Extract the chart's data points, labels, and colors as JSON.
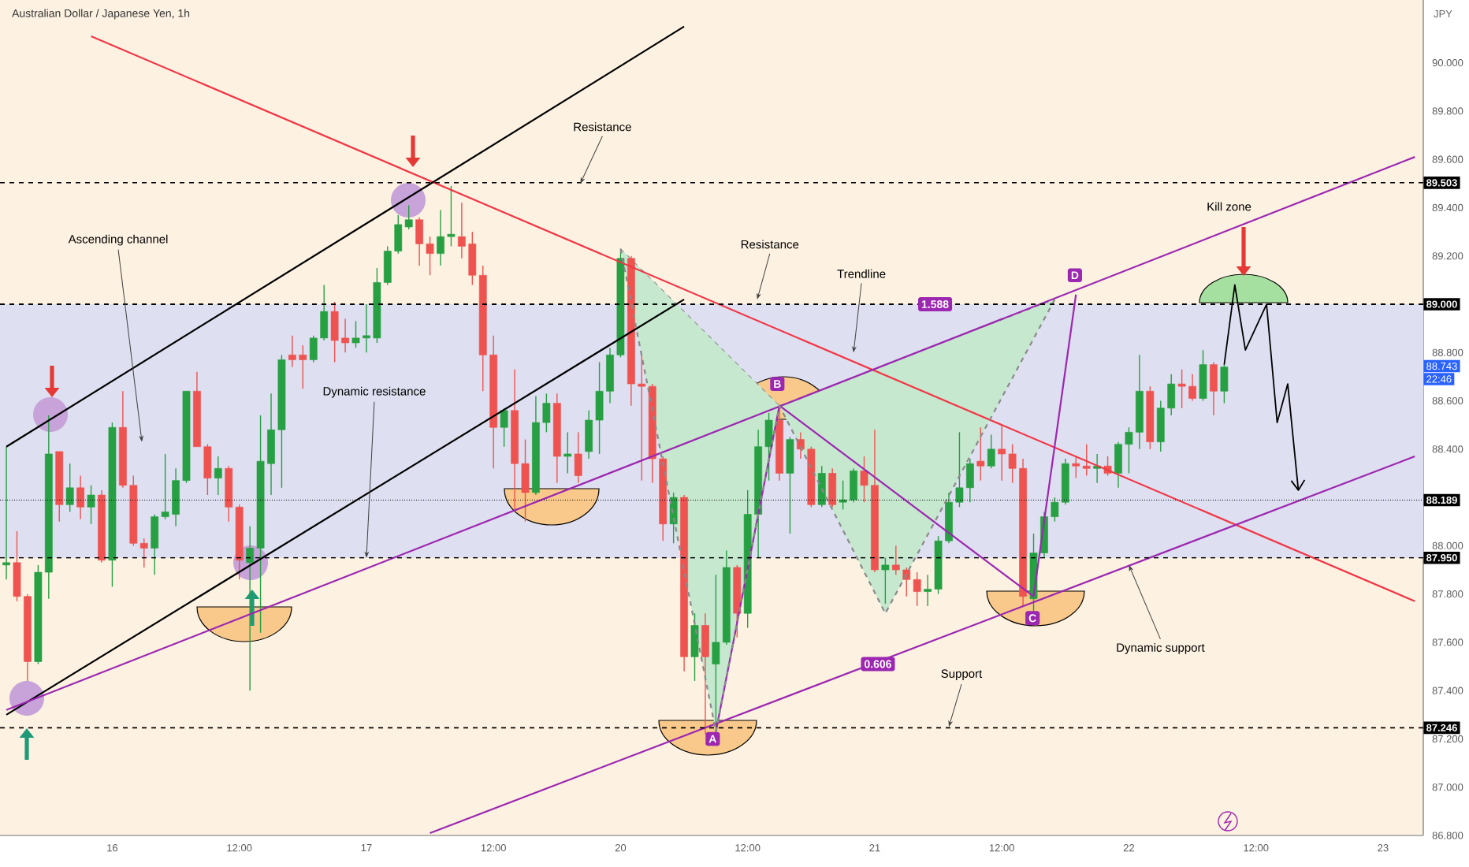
{
  "chart_data": {
    "type": "candlestick",
    "title": "Australian Dollar / Japanese Yen, 1h",
    "ylabel": "JPY",
    "categories": [
      null,
      null,
      null,
      null,
      null,
      null,
      null,
      null,
      null,
      null,
      "16",
      null,
      null,
      null,
      null,
      null,
      null,
      null,
      null,
      null,
      null,
      null,
      "12:00",
      null,
      null,
      null,
      null,
      null,
      null,
      null,
      null,
      null,
      null,
      null,
      "17",
      null,
      null,
      null,
      null,
      null,
      null,
      null,
      null,
      null,
      null,
      null,
      "12:00",
      null,
      null,
      null,
      null,
      null,
      null,
      null,
      null,
      null,
      null,
      null,
      "20",
      null,
      null,
      null,
      null,
      null,
      null,
      null,
      null,
      null,
      null,
      null,
      "12:00",
      null,
      null,
      null,
      null,
      null,
      null,
      null,
      null,
      null,
      null,
      null,
      "21",
      null,
      null,
      null,
      null,
      null,
      null,
      null,
      null,
      null,
      null,
      null,
      "12:00",
      null,
      null,
      null,
      null,
      null,
      null,
      null,
      null,
      null,
      null,
      null,
      "22",
      null,
      null,
      null,
      null,
      null,
      null,
      null,
      null,
      null,
      null,
      null,
      "12:00",
      null,
      null,
      null,
      null,
      null,
      null,
      null,
      null,
      null,
      null,
      null,
      "23",
      null,
      null,
      null
    ],
    "ohlc": [
      [
        87.92,
        88.41,
        87.86,
        87.93
      ],
      [
        87.93,
        88.06,
        87.77,
        87.79
      ],
      [
        87.79,
        87.8,
        87.44,
        87.52
      ],
      [
        87.52,
        87.92,
        87.51,
        87.89
      ],
      [
        87.89,
        88.54,
        87.78,
        88.38
      ],
      [
        88.39,
        88.39,
        88.1,
        88.17
      ],
      [
        88.17,
        88.34,
        88.14,
        88.24
      ],
      [
        88.24,
        88.29,
        88.11,
        88.16
      ],
      [
        88.16,
        88.25,
        88.09,
        88.21
      ],
      [
        88.21,
        88.23,
        87.93,
        87.94
      ],
      [
        87.94,
        88.51,
        87.83,
        88.49
      ],
      [
        88.49,
        88.64,
        88.24,
        88.25
      ],
      [
        88.25,
        88.29,
        88.0,
        88.01
      ],
      [
        88.01,
        88.03,
        87.91,
        87.99
      ],
      [
        87.99,
        88.13,
        87.88,
        88.12
      ],
      [
        88.12,
        88.38,
        88.11,
        88.14
      ],
      [
        88.13,
        88.32,
        88.08,
        88.27
      ],
      [
        88.27,
        88.64,
        88.26,
        88.64
      ],
      [
        88.64,
        88.72,
        88.41,
        88.41
      ],
      [
        88.41,
        88.42,
        88.21,
        88.28
      ],
      [
        88.28,
        88.37,
        88.21,
        88.32
      ],
      [
        88.32,
        88.33,
        88.1,
        88.16
      ],
      [
        88.16,
        88.17,
        87.86,
        87.94
      ],
      [
        87.93,
        88.08,
        87.4,
        87.99
      ],
      [
        87.99,
        88.54,
        87.64,
        88.35
      ],
      [
        88.34,
        88.63,
        88.21,
        88.48
      ],
      [
        88.48,
        88.79,
        88.24,
        88.77
      ],
      [
        88.79,
        88.87,
        88.74,
        88.77
      ],
      [
        88.79,
        88.83,
        88.65,
        88.77
      ],
      [
        88.77,
        88.87,
        88.76,
        88.86
      ],
      [
        88.86,
        89.08,
        88.85,
        88.97
      ],
      [
        88.97,
        89.01,
        88.76,
        88.85
      ],
      [
        88.86,
        88.94,
        88.8,
        88.84
      ],
      [
        88.84,
        88.93,
        88.82,
        88.86
      ],
      [
        88.86,
        89.0,
        88.8,
        88.87
      ],
      [
        88.86,
        89.15,
        88.84,
        89.09
      ],
      [
        89.09,
        89.24,
        89.08,
        89.22
      ],
      [
        89.22,
        89.37,
        89.21,
        89.33
      ],
      [
        89.32,
        89.41,
        89.31,
        89.35
      ],
      [
        89.35,
        89.36,
        89.16,
        89.25
      ],
      [
        89.25,
        89.28,
        89.12,
        89.21
      ],
      [
        89.21,
        89.39,
        89.16,
        89.28
      ],
      [
        89.28,
        89.49,
        89.24,
        89.29
      ],
      [
        89.28,
        89.42,
        89.19,
        89.24
      ],
      [
        89.25,
        89.3,
        89.08,
        89.12
      ],
      [
        89.12,
        89.16,
        88.64,
        88.79
      ],
      [
        88.79,
        88.87,
        88.32,
        88.49
      ],
      [
        88.49,
        88.57,
        88.41,
        88.56
      ],
      [
        88.56,
        88.73,
        88.15,
        88.34
      ],
      [
        88.34,
        88.44,
        88.1,
        88.22
      ],
      [
        88.22,
        88.62,
        88.21,
        88.51
      ],
      [
        88.51,
        88.63,
        88.47,
        88.59
      ],
      [
        88.59,
        88.63,
        88.26,
        88.37
      ],
      [
        88.37,
        88.47,
        88.3,
        88.38
      ],
      [
        88.38,
        88.47,
        88.26,
        88.29
      ],
      [
        88.39,
        88.56,
        88.36,
        88.52
      ],
      [
        88.52,
        88.76,
        88.38,
        88.64
      ],
      [
        88.64,
        88.82,
        88.59,
        88.79
      ],
      [
        88.79,
        89.22,
        88.78,
        89.19
      ],
      [
        89.19,
        89.2,
        88.58,
        88.67
      ],
      [
        88.67,
        88.79,
        88.27,
        88.66
      ],
      [
        88.66,
        88.67,
        88.26,
        88.36
      ],
      [
        88.36,
        88.37,
        88.02,
        88.09
      ],
      [
        88.09,
        88.22,
        88.01,
        88.2
      ],
      [
        88.2,
        88.21,
        87.48,
        87.54
      ],
      [
        87.54,
        87.72,
        87.44,
        87.67
      ],
      [
        87.67,
        87.72,
        87.22,
        87.54
      ],
      [
        87.51,
        87.88,
        87.24,
        87.6
      ],
      [
        87.6,
        87.98,
        87.59,
        87.91
      ],
      [
        87.91,
        87.92,
        87.62,
        87.72
      ],
      [
        87.72,
        88.23,
        87.66,
        88.13
      ],
      [
        88.13,
        88.48,
        87.95,
        88.41
      ],
      [
        88.41,
        88.55,
        88.27,
        88.52
      ],
      [
        88.52,
        88.57,
        88.27,
        88.3
      ],
      [
        88.3,
        88.45,
        88.05,
        88.44
      ],
      [
        88.44,
        88.47,
        88.36,
        88.4
      ],
      [
        88.4,
        88.41,
        88.16,
        88.17
      ],
      [
        88.17,
        88.33,
        88.16,
        88.3
      ],
      [
        88.3,
        88.32,
        88.16,
        88.17
      ],
      [
        88.18,
        88.27,
        88.15,
        88.19
      ],
      [
        88.19,
        88.32,
        88.18,
        88.31
      ],
      [
        88.31,
        88.37,
        88.18,
        88.25
      ],
      [
        88.25,
        88.48,
        87.89,
        87.9
      ],
      [
        87.9,
        87.95,
        87.76,
        87.92
      ],
      [
        87.92,
        88.0,
        87.88,
        87.9
      ],
      [
        87.9,
        87.91,
        87.79,
        87.86
      ],
      [
        87.86,
        87.89,
        87.75,
        87.81
      ],
      [
        87.81,
        87.88,
        87.75,
        87.82
      ],
      [
        87.82,
        88.04,
        87.8,
        88.02
      ],
      [
        88.02,
        88.22,
        88.01,
        88.18
      ],
      [
        88.18,
        88.47,
        88.16,
        88.24
      ],
      [
        88.24,
        88.36,
        88.18,
        88.34
      ],
      [
        88.35,
        88.49,
        88.27,
        88.33
      ],
      [
        88.33,
        88.46,
        88.32,
        88.4
      ],
      [
        88.4,
        88.5,
        88.27,
        88.38
      ],
      [
        88.38,
        88.42,
        88.26,
        88.32
      ],
      [
        88.32,
        88.36,
        87.75,
        87.79
      ],
      [
        87.78,
        88.05,
        87.72,
        87.97
      ],
      [
        87.97,
        88.14,
        87.95,
        88.12
      ],
      [
        88.12,
        88.2,
        88.1,
        88.18
      ],
      [
        88.18,
        88.36,
        88.17,
        88.34
      ],
      [
        88.34,
        88.37,
        88.28,
        88.33
      ],
      [
        88.33,
        88.42,
        88.29,
        88.32
      ],
      [
        88.32,
        88.38,
        88.26,
        88.33
      ],
      [
        88.33,
        88.37,
        88.29,
        88.3
      ],
      [
        88.3,
        88.43,
        88.24,
        88.42
      ],
      [
        88.42,
        88.49,
        88.3,
        88.47
      ],
      [
        88.47,
        88.79,
        88.4,
        88.64
      ],
      [
        88.64,
        88.66,
        88.4,
        88.43
      ],
      [
        88.43,
        88.6,
        88.39,
        88.57
      ],
      [
        88.57,
        88.71,
        88.54,
        88.67
      ],
      [
        88.67,
        88.73,
        88.57,
        88.66
      ],
      [
        88.66,
        88.71,
        88.6,
        88.61
      ],
      [
        88.61,
        88.81,
        88.6,
        88.75
      ],
      [
        88.75,
        88.76,
        88.54,
        88.64
      ],
      [
        88.64,
        88.75,
        88.59,
        88.74
      ],
      null,
      null,
      null,
      null,
      null,
      null,
      null,
      null,
      null,
      null,
      null,
      null,
      null,
      null,
      null,
      null,
      null,
      null
    ],
    "series": [
      {
        "type": "line",
        "color": "#f23645",
        "values": [
          null,
          null,
          null,
          null,
          null,
          null,
          null,
          null,
          90.11,
          null,
          null,
          null,
          null,
          null,
          null,
          null,
          null,
          null,
          null,
          null,
          null,
          null,
          null,
          null,
          null,
          null,
          null,
          null,
          null,
          null,
          null,
          null,
          null,
          null,
          null,
          null,
          null,
          null,
          null,
          null,
          null,
          null,
          null,
          null,
          null,
          null,
          null,
          null,
          null,
          null,
          null,
          null,
          null,
          null,
          null,
          null,
          null,
          null,
          null,
          null,
          null,
          null,
          null,
          null,
          null,
          null,
          null,
          null,
          null,
          null,
          null,
          null,
          null,
          null,
          null,
          null,
          null,
          null,
          null,
          null,
          null,
          null,
          null,
          null,
          null,
          null,
          null,
          null,
          null,
          null,
          null,
          null,
          null,
          null,
          null,
          null,
          null,
          null,
          null,
          null,
          null,
          null,
          null,
          null,
          null,
          null,
          null,
          null,
          null,
          null,
          null,
          null,
          null,
          null,
          null,
          null,
          null,
          null,
          null,
          null,
          null,
          null,
          null,
          null,
          null,
          null,
          null,
          null,
          null,
          null,
          null,
          null,
          null,
          87.77
        ]
      },
      {
        "type": "line",
        "color": "#000000",
        "values": [
          88.41,
          null,
          null,
          null,
          null,
          null,
          null,
          null,
          null,
          null,
          null,
          null,
          null,
          null,
          null,
          null,
          null,
          null,
          null,
          null,
          null,
          null,
          null,
          null,
          null,
          null,
          null,
          null,
          null,
          null,
          null,
          null,
          null,
          null,
          null,
          null,
          null,
          null,
          null,
          null,
          null,
          null,
          null,
          null,
          null,
          null,
          null,
          null,
          null,
          null,
          null,
          null,
          null,
          null,
          null,
          null,
          null,
          null,
          null,
          null,
          null,
          null,
          null,
          null,
          90.15,
          null,
          null,
          null,
          null,
          null,
          null,
          null,
          null,
          null,
          null,
          null,
          null,
          null,
          null,
          null,
          null,
          null,
          null,
          null,
          null,
          null,
          null,
          null,
          null,
          null,
          null,
          null,
          null,
          null,
          null,
          null,
          null,
          null,
          null,
          null,
          null,
          null,
          null,
          null,
          null,
          null,
          null,
          null,
          null,
          null,
          null,
          null,
          null,
          null,
          null,
          null,
          null,
          null,
          null,
          null,
          null,
          null,
          null,
          null,
          null,
          null,
          null,
          null,
          null,
          null,
          null,
          null,
          null,
          null
        ]
      },
      {
        "type": "line",
        "color": "#000000",
        "values": [
          87.3,
          null,
          null,
          null,
          null,
          null,
          null,
          null,
          null,
          null,
          null,
          null,
          null,
          null,
          null,
          null,
          null,
          null,
          null,
          null,
          null,
          null,
          null,
          null,
          null,
          null,
          null,
          null,
          null,
          null,
          null,
          null,
          null,
          null,
          null,
          null,
          null,
          null,
          null,
          null,
          null,
          null,
          null,
          null,
          null,
          null,
          null,
          null,
          null,
          null,
          null,
          null,
          null,
          null,
          null,
          null,
          null,
          null,
          null,
          null,
          null,
          null,
          null,
          null,
          89.02,
          null,
          null,
          null,
          null,
          null,
          null,
          null,
          null,
          null,
          null,
          null,
          null,
          null,
          null,
          null,
          null,
          null,
          null,
          null,
          null,
          null,
          null,
          null,
          null,
          null,
          null,
          null,
          null,
          null,
          null,
          null,
          null,
          null,
          null,
          null,
          null,
          null,
          null,
          null,
          null,
          null,
          null,
          null,
          null,
          null,
          null,
          null,
          null,
          null,
          null,
          null,
          null,
          null,
          null,
          null,
          null,
          null,
          null,
          null,
          null,
          null,
          null,
          null,
          null,
          null,
          null,
          null,
          null,
          null
        ]
      },
      {
        "type": "line",
        "color": "#9c27b0",
        "values": [
          87.32,
          null,
          null,
          null,
          null,
          null,
          null,
          null,
          null,
          null,
          null,
          null,
          null,
          null,
          null,
          null,
          null,
          null,
          null,
          null,
          null,
          null,
          null,
          null,
          null,
          null,
          null,
          null,
          null,
          null,
          null,
          null,
          null,
          null,
          null,
          null,
          null,
          null,
          null,
          null,
          null,
          null,
          null,
          null,
          null,
          null,
          null,
          null,
          null,
          null,
          null,
          null,
          null,
          null,
          null,
          null,
          null,
          null,
          null,
          null,
          null,
          null,
          null,
          null,
          null,
          null,
          null,
          null,
          null,
          null,
          null,
          null,
          null,
          null,
          null,
          null,
          null,
          null,
          null,
          null,
          null,
          null,
          null,
          null,
          null,
          null,
          null,
          null,
          null,
          null,
          null,
          null,
          null,
          null,
          null,
          null,
          null,
          null,
          null,
          null,
          null,
          null,
          null,
          null,
          null,
          null,
          null,
          null,
          null,
          null,
          null,
          null,
          null,
          null,
          null,
          null,
          null,
          null,
          null,
          null,
          null,
          null,
          null,
          null,
          null,
          null,
          null,
          null,
          null,
          null,
          null,
          null,
          null,
          89.61
        ]
      },
      {
        "type": "line",
        "color": "#9c27b0",
        "values": [
          null,
          null,
          null,
          null,
          null,
          null,
          null,
          null,
          null,
          null,
          null,
          null,
          null,
          null,
          null,
          null,
          null,
          null,
          null,
          null,
          null,
          null,
          null,
          null,
          null,
          null,
          null,
          null,
          null,
          null,
          null,
          null,
          null,
          null,
          null,
          null,
          null,
          null,
          null,
          null,
          86.81,
          null,
          null,
          null,
          null,
          null,
          null,
          null,
          null,
          null,
          null,
          null,
          null,
          null,
          null,
          null,
          null,
          null,
          null,
          null,
          null,
          null,
          null,
          null,
          null,
          null,
          null,
          null,
          null,
          null,
          null,
          null,
          null,
          null,
          null,
          null,
          null,
          null,
          null,
          null,
          null,
          null,
          null,
          null,
          null,
          null,
          null,
          null,
          null,
          null,
          null,
          null,
          null,
          null,
          null,
          null,
          null,
          null,
          null,
          null,
          null,
          null,
          null,
          null,
          null,
          null,
          null,
          null,
          null,
          null,
          null,
          null,
          null,
          null,
          null,
          null,
          null,
          null,
          null,
          null,
          null,
          null,
          null,
          null,
          null,
          null,
          null,
          null,
          null,
          null,
          null,
          null,
          null,
          88.37
        ]
      },
      {
        "type": "line",
        "color": "#9c27b0",
        "values": [
          null,
          null,
          null,
          null,
          null,
          null,
          null,
          null,
          null,
          null,
          null,
          null,
          null,
          null,
          null,
          null,
          null,
          null,
          null,
          null,
          null,
          null,
          null,
          null,
          null,
          null,
          null,
          null,
          null,
          null,
          null,
          null,
          null,
          null,
          null,
          null,
          null,
          null,
          null,
          null,
          null,
          null,
          null,
          null,
          null,
          null,
          null,
          null,
          null,
          null,
          null,
          null,
          null,
          null,
          null,
          null,
          null,
          null,
          null,
          null,
          null,
          null,
          null,
          null,
          null,
          null,
          null,
          87.23,
          null,
          null,
          null,
          null,
          null,
          88.58,
          null,
          null,
          null,
          null,
          null,
          null,
          null,
          null,
          null,
          null,
          null,
          null,
          null,
          null,
          null,
          null,
          null,
          null,
          null,
          null,
          null,
          null,
          null,
          87.79,
          null,
          null,
          null,
          89.04,
          null,
          null,
          null,
          null,
          null,
          null,
          null,
          null,
          null,
          null,
          null,
          null,
          null,
          null,
          null,
          null,
          null,
          null,
          null,
          null,
          null,
          null,
          null,
          null,
          null,
          null,
          null,
          null,
          null,
          null,
          null,
          null
        ]
      },
      {
        "type": "line",
        "color": "#8a8a8a",
        "line_style": "dashed",
        "values": [
          null,
          null,
          null,
          null,
          null,
          null,
          null,
          null,
          null,
          null,
          null,
          null,
          null,
          null,
          null,
          null,
          null,
          null,
          null,
          null,
          null,
          null,
          null,
          null,
          null,
          null,
          null,
          null,
          null,
          null,
          null,
          null,
          null,
          null,
          null,
          null,
          null,
          null,
          null,
          null,
          null,
          null,
          null,
          null,
          null,
          null,
          null,
          null,
          null,
          null,
          null,
          null,
          null,
          null,
          null,
          null,
          null,
          null,
          89.23,
          null,
          null,
          null,
          null,
          null,
          null,
          null,
          null,
          87.23,
          null,
          null,
          null,
          null,
          null,
          88.58,
          null,
          null,
          null,
          null,
          null,
          null,
          null,
          null,
          null,
          87.72,
          null,
          null,
          null,
          null,
          null,
          null,
          null,
          null,
          null,
          null,
          null,
          null,
          null,
          null,
          null,
          89.02,
          null,
          null,
          null,
          null,
          null,
          null,
          null,
          null,
          null,
          null,
          null,
          null,
          null,
          null,
          null,
          null,
          null,
          null,
          null,
          null,
          null,
          null,
          null,
          null,
          null,
          null,
          null,
          null,
          null,
          null,
          null,
          null,
          null,
          null
        ]
      },
      {
        "type": "line",
        "color": "#000000",
        "values": [
          null,
          null,
          null,
          null,
          null,
          null,
          null,
          null,
          null,
          null,
          null,
          null,
          null,
          null,
          null,
          null,
          null,
          null,
          null,
          null,
          null,
          null,
          null,
          null,
          null,
          null,
          null,
          null,
          null,
          null,
          null,
          null,
          null,
          null,
          null,
          null,
          null,
          null,
          null,
          null,
          null,
          null,
          null,
          null,
          null,
          null,
          null,
          null,
          null,
          null,
          null,
          null,
          null,
          null,
          null,
          null,
          null,
          null,
          null,
          null,
          null,
          null,
          null,
          null,
          null,
          null,
          null,
          null,
          null,
          null,
          null,
          null,
          null,
          null,
          null,
          null,
          null,
          null,
          null,
          null,
          null,
          null,
          null,
          null,
          null,
          null,
          null,
          null,
          null,
          null,
          null,
          null,
          null,
          null,
          null,
          null,
          null,
          null,
          null,
          null,
          null,
          null,
          null,
          null,
          null,
          null,
          null,
          null,
          null,
          null,
          null,
          null,
          null,
          null,
          null,
          88.75,
          89.08,
          88.81,
          null,
          89.0,
          88.51,
          88.67,
          88.23,
          null,
          null,
          null,
          null,
          null,
          null,
          null,
          null,
          null,
          null,
          null
        ]
      }
    ],
    "ylim": [
      86.8,
      90.26
    ],
    "yticks": [
      {
        "value": 86.8,
        "label": "86.800"
      },
      {
        "value": 87.0,
        "label": "87.000"
      },
      {
        "value": 87.2,
        "label": "87.200"
      },
      {
        "value": 87.4,
        "label": "87.400"
      },
      {
        "value": 87.6,
        "label": "87.600"
      },
      {
        "value": 87.8,
        "label": "87.800"
      },
      {
        "value": 88.0,
        "label": "88.000"
      },
      {
        "value": 88.2,
        "label": null
      },
      {
        "value": 88.4,
        "label": "88.400"
      },
      {
        "value": 88.6,
        "label": "88.600"
      },
      {
        "value": 88.8,
        "label": "88.800"
      },
      {
        "value": 89.0,
        "label": null
      },
      {
        "value": 89.2,
        "label": "89.200"
      },
      {
        "value": 89.4,
        "label": "89.400"
      },
      {
        "value": 89.6,
        "label": "89.600"
      },
      {
        "value": 89.8,
        "label": "89.800"
      },
      {
        "value": 90.0,
        "label": "90.000"
      }
    ],
    "bands": [
      {
        "axis": "y",
        "from": 87.95,
        "to": 89.0,
        "color": "#dedff0"
      }
    ],
    "ref_lines": [
      {
        "axis": "y",
        "value": 89.503,
        "label": "89.503",
        "color": "#000000",
        "line_style": "dashed"
      },
      {
        "axis": "y",
        "value": 89.0,
        "label": "89.000",
        "color": "#000000",
        "line_style": "dashed"
      },
      {
        "axis": "y",
        "value": 88.189,
        "label": "88.189",
        "color": "#000000",
        "line_style": "dotted"
      },
      {
        "axis": "y",
        "value": 87.95,
        "label": "87.950",
        "color": "#000000",
        "line_style": "dashed"
      },
      {
        "axis": "y",
        "value": 87.246,
        "label": "87.246",
        "color": "#000000",
        "line_style": "dashed"
      }
    ],
    "annotations": [
      "Resistance",
      "Ascending channel",
      {
        "text": "Dynamic resistance",
        "x": "17",
        "y": 87.95
      },
      "Resistance",
      "Trendline",
      "Kill zone",
      "Support",
      {
        "text": "Dynamic support",
        "x": "22",
        "y": 87.92
      },
      {
        "text": "1.588",
        "y": 89.0
      },
      {
        "text": "0.606",
        "y": 87.51
      },
      {
        "text": "A",
        "y": 87.2
      },
      {
        "text": "B",
        "y": 88.67
      },
      {
        "text": "C",
        "y": 87.7
      },
      {
        "text": "D",
        "y": 89.12
      },
      {
        "text": "88.743",
        "y": 88.743
      },
      "22:46"
    ]
  }
}
